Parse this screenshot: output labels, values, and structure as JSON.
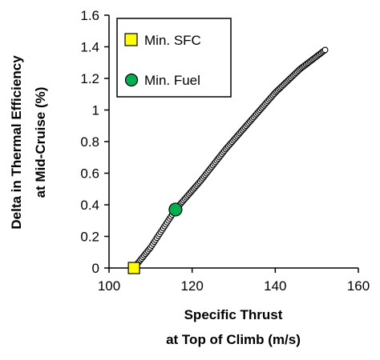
{
  "chart_data": {
    "type": "scatter",
    "title": "",
    "xlabel": [
      "Specific Thrust",
      "at Top of Climb (m/s)"
    ],
    "ylabel": [
      "Delta in Thermal Efficiency",
      "at Mid-Cruise (%)"
    ],
    "xlim": [
      100,
      160
    ],
    "ylim": [
      0,
      1.6
    ],
    "x_ticks": [
      100,
      120,
      140,
      160
    ],
    "y_ticks": [
      0,
      0.2,
      0.4,
      0.6,
      0.8,
      1,
      1.2,
      1.4,
      1.6
    ],
    "x_tick_labels": [
      "100",
      "120",
      "140",
      "160"
    ],
    "y_tick_labels": [
      "0",
      "0.2",
      "0.4",
      "0.6",
      "0.8",
      "1",
      "1.2",
      "1.4",
      "1.6"
    ],
    "grid": false,
    "legend": "top-left",
    "series": [
      {
        "name": "",
        "marker": "circle-open",
        "color": "#000000",
        "x_range": [
          106,
          152
        ],
        "curve": [
          {
            "x": 106,
            "y": 0.0
          },
          {
            "x": 110,
            "y": 0.13
          },
          {
            "x": 116,
            "y": 0.37
          },
          {
            "x": 122,
            "y": 0.55
          },
          {
            "x": 128,
            "y": 0.75
          },
          {
            "x": 134,
            "y": 0.93
          },
          {
            "x": 140,
            "y": 1.11
          },
          {
            "x": 146,
            "y": 1.26
          },
          {
            "x": 152,
            "y": 1.38
          }
        ]
      },
      {
        "name": "Min. SFC",
        "marker": "square",
        "color": "#ffff00",
        "points": [
          {
            "x": 106,
            "y": 0.0
          }
        ]
      },
      {
        "name": "Min. Fuel",
        "marker": "circle",
        "color": "#00b050",
        "points": [
          {
            "x": 116,
            "y": 0.37
          }
        ]
      }
    ]
  }
}
